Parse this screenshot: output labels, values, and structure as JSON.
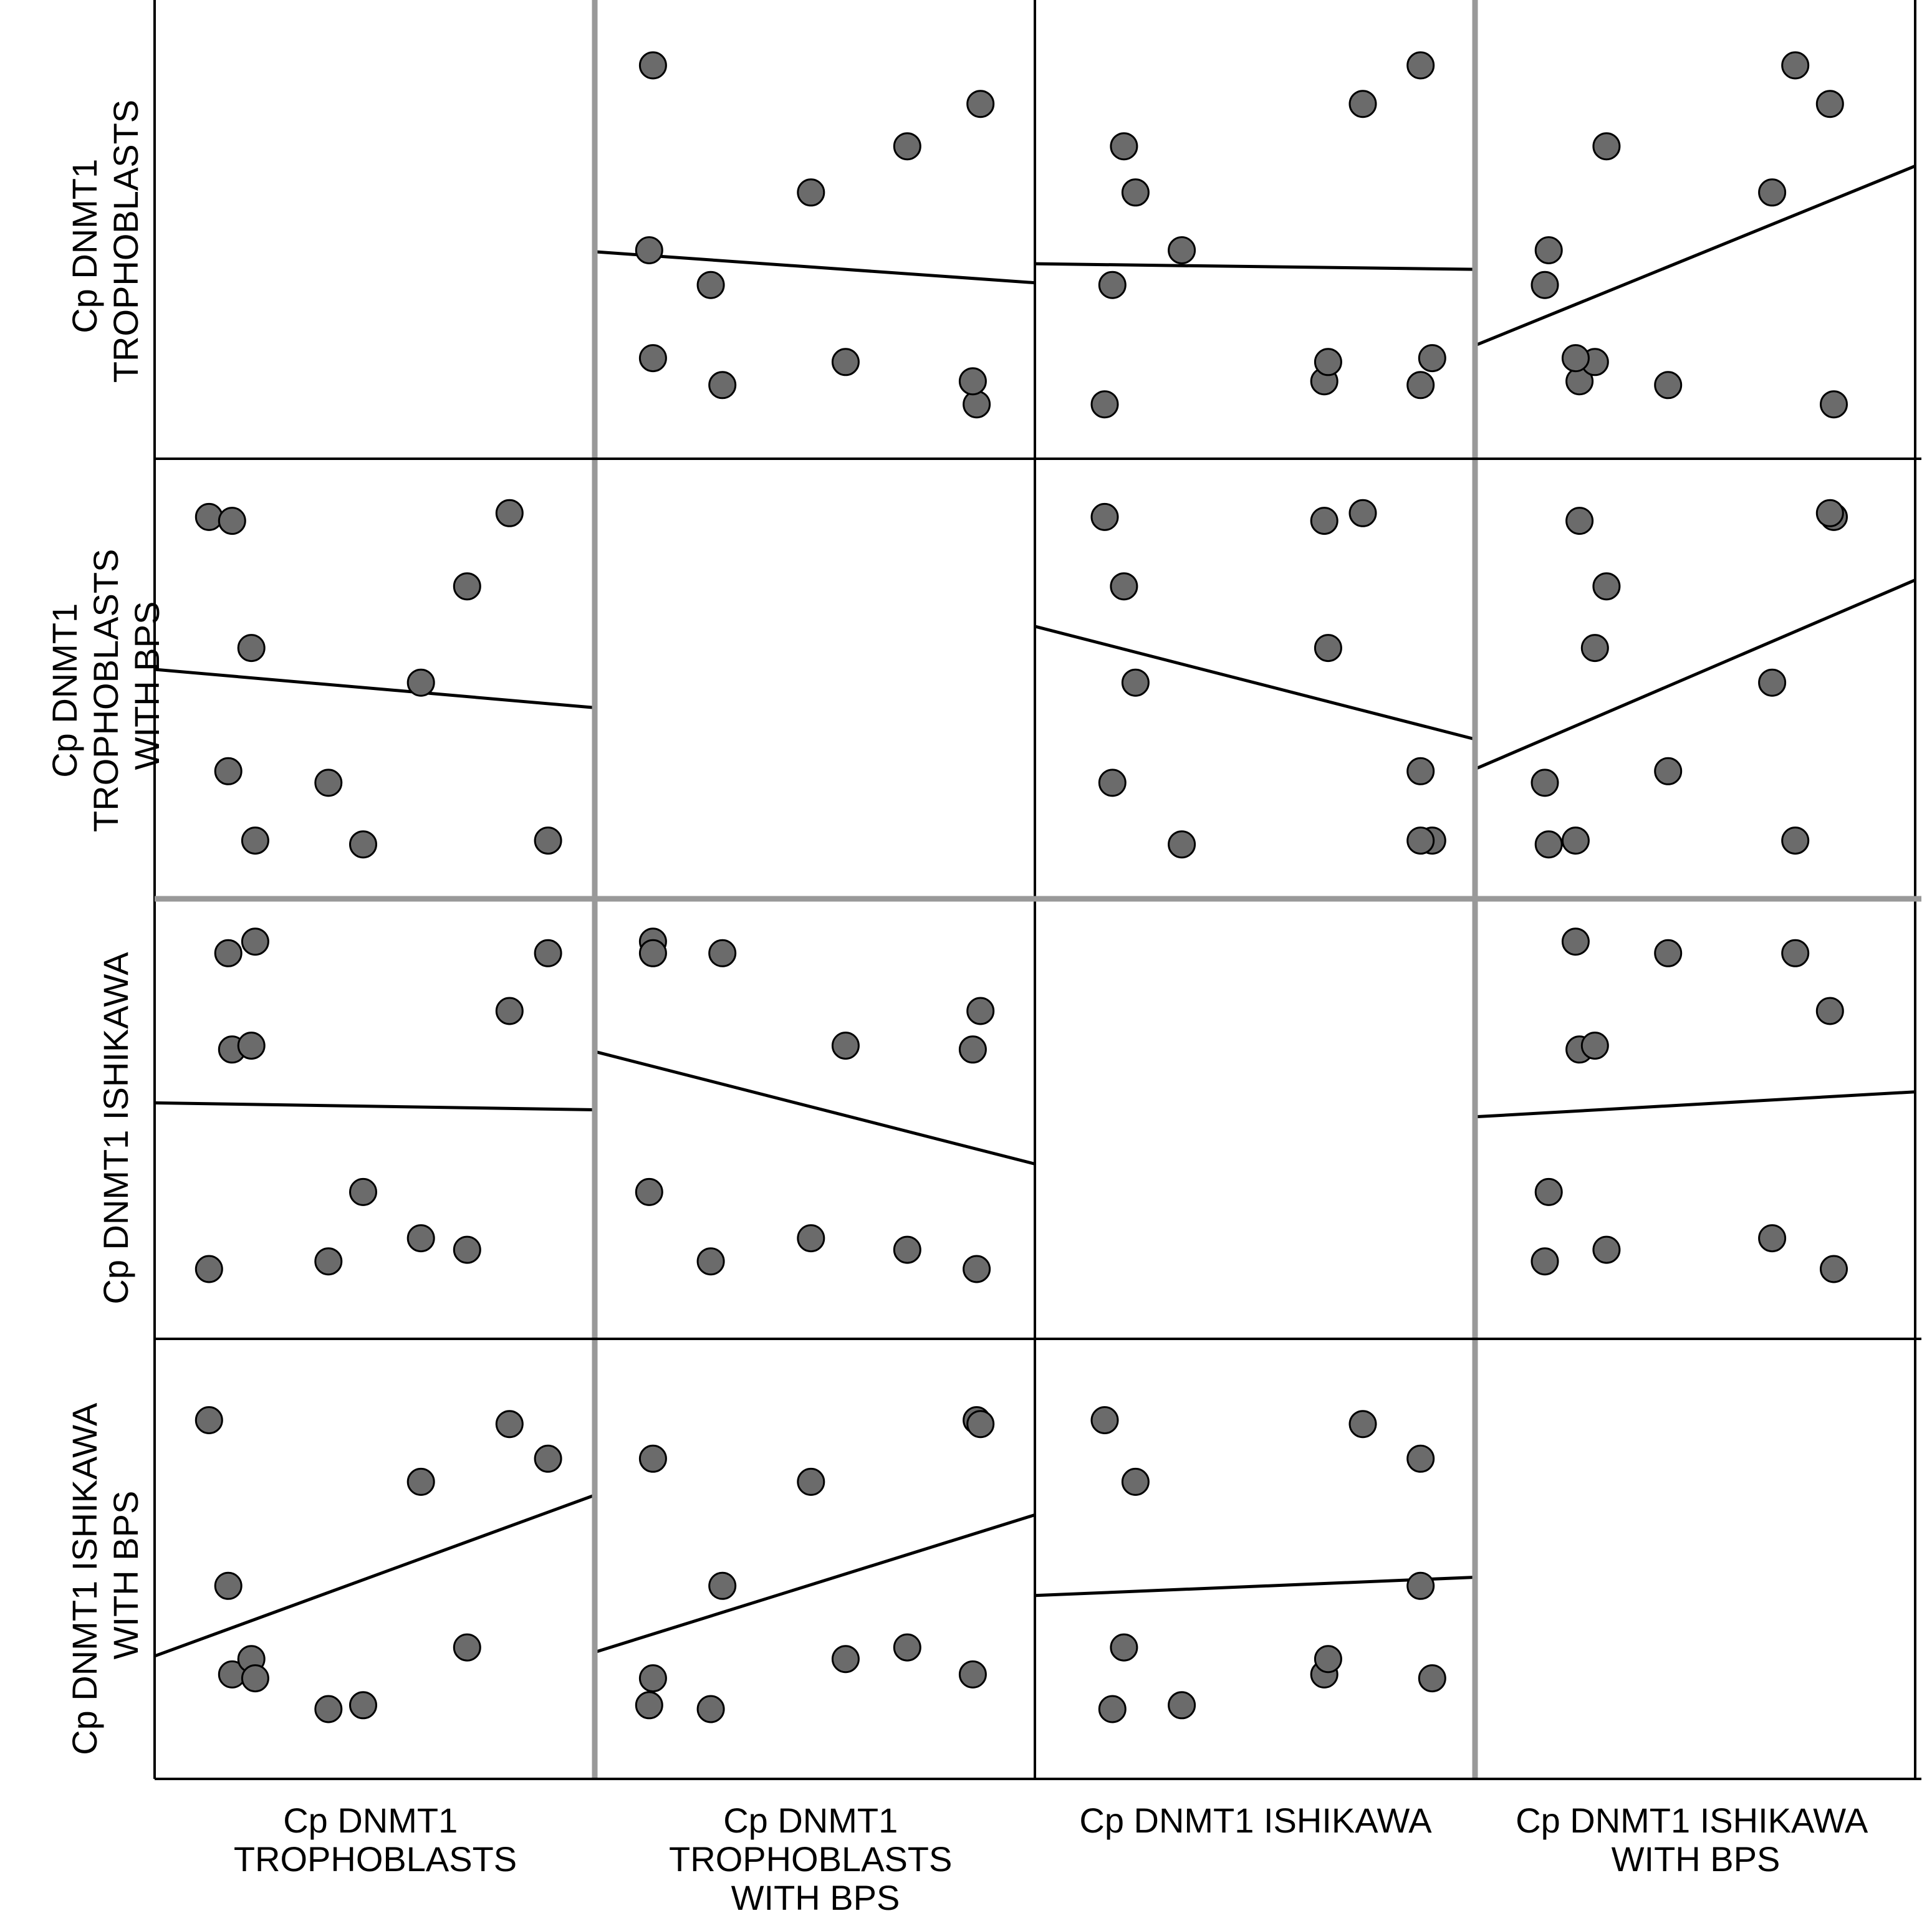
{
  "chart_data": {
    "type": "scatter",
    "subtype": "scatter-matrix-with-fit-lines",
    "variables": [
      {
        "line1": "Cp DNMT1",
        "line2": "TROPHOBLASTS",
        "line3": ""
      },
      {
        "line1": "Cp DNMT1",
        "line2": "TROPHOBLASTS",
        "line3": "WITH BPS"
      },
      {
        "line1": "Cp DNMT1  ISHIKAWA",
        "line2": "",
        "line3": ""
      },
      {
        "line1": "Cp DNMT1  ISHIKAWA",
        "line2": "WITH BPS",
        "line3": ""
      }
    ],
    "range": [
      0,
      100
    ],
    "observations": [
      [
        7,
        92,
        11,
        86
      ],
      [
        12,
        26,
        93,
        43
      ],
      [
        13,
        91,
        68,
        20
      ],
      [
        18,
        58,
        69,
        24
      ],
      [
        19,
        8,
        96,
        19
      ],
      [
        38,
        23,
        13,
        11
      ],
      [
        47,
        7,
        31,
        12
      ],
      [
        62,
        49,
        19,
        70
      ],
      [
        74,
        74,
        16,
        27
      ],
      [
        85,
        93,
        78,
        85
      ],
      [
        95,
        8,
        93,
        76
      ]
    ]
  },
  "y_axis_labels": [
    {
      "line1": "Cp DNMT1",
      "line2": "TROPHOBLASTS",
      "line3": ""
    },
    {
      "line1": "Cp DNMT1",
      "line2": "TROPHOBLASTS",
      "line3": "WITH BPS"
    },
    {
      "line1": "Cp DNMT1  ISHIKAWA",
      "line2": "",
      "line3": ""
    },
    {
      "line1": "Cp DNMT1  ISHIKAWA",
      "line2": "WITH BPS",
      "line3": ""
    }
  ],
  "x_axis_labels": [
    {
      "line1": "Cp DNMT1",
      "line2": "TROPHOBLASTS",
      "line3": ""
    },
    {
      "line1": "Cp DNMT1",
      "line2": "TROPHOBLASTS",
      "line3": "WITH BPS"
    },
    {
      "line1": "Cp DNMT1  ISHIKAWA",
      "line2": "",
      "line3": ""
    },
    {
      "line1": "Cp DNMT1  ISHIKAWA",
      "line2": "WITH BPS",
      "line3": ""
    }
  ],
  "colors": {
    "marker_fill": "#6b6b6b",
    "marker_stroke": "#000000",
    "fit_line": "#000000",
    "thick_grid": "#999999"
  }
}
